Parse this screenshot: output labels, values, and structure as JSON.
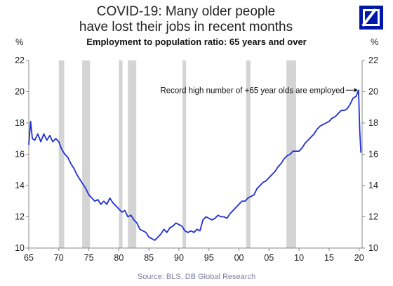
{
  "header": {
    "title_line1": "COVID-19: Many older people",
    "title_line2": "have lost their jobs in recent months",
    "unit_left": "%",
    "unit_right": "%"
  },
  "logo": {
    "icon": "deutsche-bank-logo-icon",
    "color": "#0018a8"
  },
  "footer": {
    "source": "Source: BLS, DB Global Research"
  },
  "chart_data": {
    "type": "line",
    "title": "Employment to population ratio: 65 years and over",
    "xlim": [
      1965,
      2020.5
    ],
    "ylim": [
      10,
      22
    ],
    "yticks": [
      10,
      12,
      14,
      16,
      18,
      20,
      22
    ],
    "xticks": [
      {
        "value": 1965,
        "label": "65"
      },
      {
        "value": 1970,
        "label": "70"
      },
      {
        "value": 1975,
        "label": "75"
      },
      {
        "value": 1980,
        "label": "80"
      },
      {
        "value": 1985,
        "label": "85"
      },
      {
        "value": 1990,
        "label": "90"
      },
      {
        "value": 1995,
        "label": "95"
      },
      {
        "value": 2000,
        "label": "00"
      },
      {
        "value": 2005,
        "label": "05"
      },
      {
        "value": 2010,
        "label": "10"
      },
      {
        "value": 2015,
        "label": "15"
      },
      {
        "value": 2020,
        "label": "20"
      }
    ],
    "line_color": "#1f2fd6",
    "recession_color": "#d4d4d4",
    "recessions": [
      [
        1970.0,
        1970.9
      ],
      [
        1973.9,
        1975.2
      ],
      [
        1980.0,
        1980.6
      ],
      [
        1981.5,
        1982.9
      ],
      [
        1990.6,
        1991.2
      ],
      [
        2001.2,
        2001.9
      ],
      [
        2007.9,
        2009.5
      ]
    ],
    "series": [
      {
        "x": [
          1965.0,
          1965.3,
          1965.6,
          1966.0,
          1966.5,
          1967.0,
          1967.5,
          1968.0,
          1968.5,
          1969.0,
          1969.5,
          1970.0,
          1970.5,
          1971.0,
          1971.5,
          1972.0,
          1972.5,
          1973.0,
          1973.5,
          1974.0,
          1974.5,
          1975.0,
          1975.5,
          1976.0,
          1976.5,
          1977.0,
          1977.5,
          1978.0,
          1978.5,
          1979.0,
          1979.5,
          1980.0,
          1980.5,
          1981.0,
          1981.5,
          1982.0,
          1982.5,
          1983.0,
          1983.5,
          1984.0,
          1984.5,
          1985.0,
          1985.5,
          1986.0,
          1986.5,
          1987.0,
          1987.5,
          1988.0,
          1988.5,
          1989.0,
          1989.5,
          1990.0,
          1990.5,
          1991.0,
          1991.5,
          1992.0,
          1992.5,
          1993.0,
          1993.5,
          1994.0,
          1994.5,
          1995.0,
          1995.5,
          1996.0,
          1996.5,
          1997.0,
          1997.5,
          1998.0,
          1998.5,
          1999.0,
          1999.5,
          2000.0,
          2000.5,
          2001.0,
          2001.5,
          2002.0,
          2002.5,
          2003.0,
          2003.5,
          2004.0,
          2004.5,
          2005.0,
          2005.5,
          2006.0,
          2006.5,
          2007.0,
          2007.5,
          2008.0,
          2008.5,
          2009.0,
          2009.5,
          2010.0,
          2010.5,
          2011.0,
          2011.5,
          2012.0,
          2012.5,
          2013.0,
          2013.5,
          2014.0,
          2014.5,
          2015.0,
          2015.5,
          2016.0,
          2016.5,
          2017.0,
          2017.5,
          2018.0,
          2018.5,
          2019.0,
          2019.5,
          2019.9,
          2020.1,
          2020.3
        ],
        "y": [
          16.6,
          18.1,
          17.0,
          16.9,
          17.3,
          16.8,
          17.3,
          16.9,
          17.2,
          16.8,
          17.0,
          16.8,
          16.3,
          16.0,
          15.8,
          15.4,
          15.1,
          14.7,
          14.4,
          14.1,
          13.8,
          13.4,
          13.2,
          13.0,
          13.1,
          12.8,
          13.0,
          12.8,
          13.2,
          12.9,
          12.7,
          12.5,
          12.3,
          12.4,
          12.0,
          12.1,
          11.8,
          11.6,
          11.2,
          11.1,
          11.0,
          10.7,
          10.6,
          10.5,
          10.7,
          10.9,
          11.2,
          11.0,
          11.3,
          11.4,
          11.6,
          11.5,
          11.4,
          11.1,
          11.0,
          11.1,
          11.0,
          11.2,
          11.1,
          11.8,
          12.0,
          11.9,
          11.8,
          11.9,
          12.1,
          12.0,
          12.0,
          11.9,
          12.2,
          12.4,
          12.6,
          12.8,
          13.0,
          13.0,
          13.2,
          13.3,
          13.4,
          13.8,
          14.0,
          14.2,
          14.3,
          14.5,
          14.7,
          14.9,
          15.2,
          15.4,
          15.7,
          15.9,
          16.0,
          16.2,
          16.2,
          16.2,
          16.4,
          16.7,
          16.9,
          17.1,
          17.3,
          17.6,
          17.8,
          17.9,
          18.0,
          18.1,
          18.3,
          18.4,
          18.6,
          18.8,
          18.8,
          18.9,
          19.2,
          19.6,
          19.7,
          20.1,
          17.5,
          16.1
        ]
      }
    ],
    "annotation": {
      "text": "Record high number of +65 year olds are employed",
      "x": 2019.9,
      "y": 20.1
    }
  }
}
